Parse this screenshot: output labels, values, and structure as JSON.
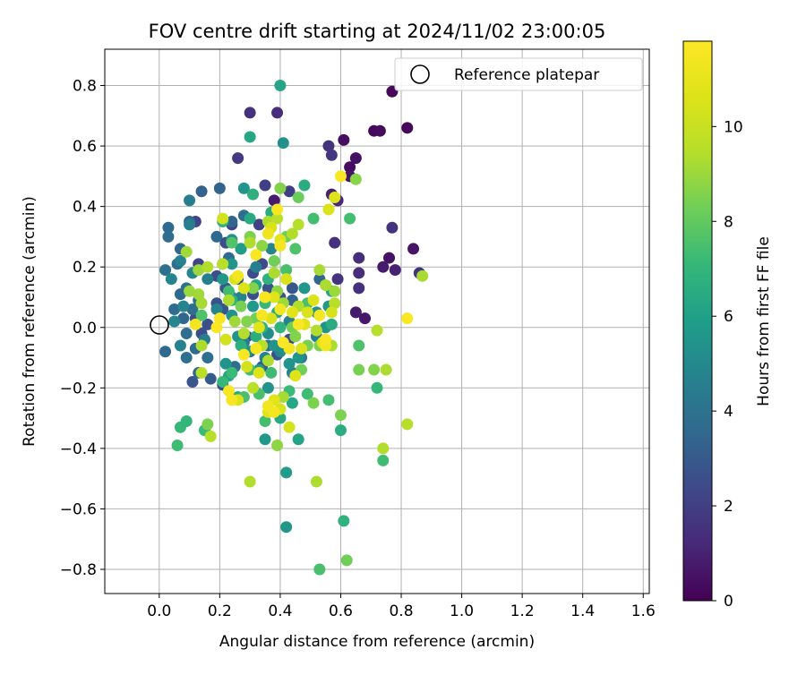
{
  "chart_data": {
    "type": "scatter",
    "title": "FOV centre drift starting at 2024/11/02 23:00:05",
    "xlabel": "Angular distance from reference (arcmin)",
    "ylabel": "Rotation from reference (arcmin)",
    "xlim": [
      -0.18,
      1.62
    ],
    "ylim": [
      -0.88,
      0.92
    ],
    "xticks": [
      0.0,
      0.2,
      0.4,
      0.6,
      0.8,
      1.0,
      1.2,
      1.4,
      1.6
    ],
    "xtick_labels": [
      "0.0",
      "0.2",
      "0.4",
      "0.6",
      "0.8",
      "1.0",
      "1.2",
      "1.4",
      "1.6"
    ],
    "yticks": [
      0.8,
      0.6,
      0.4,
      0.2,
      0.0,
      -0.2,
      -0.4,
      -0.6,
      -0.8
    ],
    "ytick_labels": [
      "0.8",
      "0.6",
      "0.4",
      "0.2",
      "0.0",
      "−0.2",
      "−0.4",
      "−0.6",
      "−0.8"
    ],
    "grid": true,
    "legend": {
      "placement": "top-right",
      "entries": [
        "Reference platepar"
      ]
    },
    "reference_point": {
      "x": 0.0,
      "y": 0.0,
      "label": "Reference platepar"
    },
    "colorbar": {
      "label": "Hours from first FF file",
      "colormap": "viridis",
      "range": [
        0,
        11.8
      ],
      "ticks": [
        0,
        2,
        4,
        6,
        8,
        10
      ],
      "tick_labels": [
        "0",
        "2",
        "4",
        "6",
        "8",
        "10"
      ]
    },
    "points": [
      [
        0.77,
        0.78,
        0.2
      ],
      [
        0.82,
        0.66,
        0.2
      ],
      [
        0.71,
        0.65,
        0.2
      ],
      [
        0.73,
        0.65,
        0.3
      ],
      [
        0.61,
        0.62,
        0.4
      ],
      [
        0.63,
        0.53,
        0.4
      ],
      [
        0.65,
        0.56,
        0.5
      ],
      [
        0.63,
        0.5,
        0.6
      ],
      [
        0.84,
        0.26,
        0.6
      ],
      [
        0.76,
        0.23,
        0.5
      ],
      [
        0.74,
        0.2,
        0.8
      ],
      [
        0.78,
        0.19,
        1.0
      ],
      [
        0.68,
        0.03,
        0.7
      ],
      [
        0.65,
        0.05,
        0.8
      ],
      [
        0.38,
        0.42,
        0.8
      ],
      [
        0.57,
        0.44,
        1.0
      ],
      [
        0.59,
        0.42,
        1.2
      ],
      [
        0.39,
        0.71,
        1.4
      ],
      [
        0.3,
        0.71,
        1.5
      ],
      [
        0.56,
        0.6,
        1.6
      ],
      [
        0.57,
        0.57,
        1.7
      ],
      [
        0.26,
        0.56,
        1.8
      ],
      [
        0.77,
        0.33,
        1.6
      ],
      [
        0.58,
        0.28,
        1.5
      ],
      [
        0.66,
        0.23,
        1.4
      ],
      [
        0.66,
        0.18,
        1.4
      ],
      [
        0.86,
        0.18,
        1.6
      ],
      [
        0.66,
        0.13,
        1.5
      ],
      [
        0.59,
        0.16,
        1.6
      ],
      [
        0.35,
        0.47,
        2.0
      ],
      [
        0.43,
        0.45,
        2.0
      ],
      [
        0.33,
        0.34,
        2.1
      ],
      [
        0.12,
        0.35,
        2.2
      ],
      [
        0.24,
        0.34,
        2.3
      ],
      [
        0.27,
        0.26,
        2.3
      ],
      [
        0.22,
        0.28,
        2.5
      ],
      [
        0.34,
        0.21,
        2.4
      ],
      [
        0.13,
        0.21,
        2.2
      ],
      [
        0.21,
        0.21,
        2.6
      ],
      [
        0.31,
        0.18,
        2.5
      ],
      [
        0.19,
        0.17,
        2.6
      ],
      [
        0.26,
        0.16,
        2.8
      ],
      [
        0.22,
        0.13,
        2.9
      ],
      [
        0.36,
        0.13,
        2.7
      ],
      [
        0.44,
        0.13,
        2.9
      ],
      [
        0.31,
        0.11,
        2.6
      ],
      [
        0.4,
        0.1,
        2.8
      ],
      [
        0.19,
        0.08,
        2.7
      ],
      [
        0.21,
        0.06,
        2.8
      ],
      [
        0.12,
        0.03,
        2.5
      ],
      [
        0.16,
        0.01,
        2.6
      ],
      [
        0.14,
        -0.02,
        2.5
      ],
      [
        0.29,
        -0.03,
        2.6
      ],
      [
        0.43,
        -0.04,
        2.4
      ],
      [
        0.39,
        -0.09,
        2.7
      ],
      [
        0.34,
        -0.13,
        2.9
      ],
      [
        0.21,
        -0.19,
        2.5
      ],
      [
        0.11,
        -0.18,
        2.8
      ],
      [
        0.17,
        -0.17,
        3.0
      ],
      [
        0.14,
        0.45,
        3.3
      ],
      [
        0.2,
        0.46,
        3.4
      ],
      [
        0.1,
        0.35,
        3.5
      ],
      [
        0.03,
        0.33,
        3.6
      ],
      [
        0.03,
        0.3,
        3.7
      ],
      [
        0.07,
        0.26,
        3.5
      ],
      [
        0.06,
        0.21,
        3.8
      ],
      [
        0.02,
        0.19,
        3.9
      ],
      [
        0.09,
        0.13,
        3.8
      ],
      [
        0.07,
        0.11,
        3.6
      ],
      [
        0.13,
        0.09,
        3.9
      ],
      [
        0.05,
        0.06,
        3.7
      ],
      [
        0.11,
        0.06,
        3.8
      ],
      [
        0.08,
        0.03,
        3.5
      ],
      [
        0.09,
        -0.02,
        3.8
      ],
      [
        0.02,
        -0.08,
        3.6
      ],
      [
        0.12,
        -0.07,
        3.7
      ],
      [
        0.09,
        -0.1,
        3.9
      ],
      [
        0.16,
        -0.1,
        3.9
      ],
      [
        0.13,
        -0.15,
        3.5
      ],
      [
        0.25,
        -0.13,
        3.8
      ],
      [
        0.3,
        -0.08,
        3.9
      ],
      [
        0.36,
        -0.06,
        3.7
      ],
      [
        0.44,
        0.09,
        3.4
      ],
      [
        0.53,
        0.16,
        3.6
      ],
      [
        0.19,
        0.3,
        3.6
      ],
      [
        0.24,
        0.35,
        3.5
      ],
      [
        0.28,
        0.37,
        3.8
      ],
      [
        0.23,
        0.23,
        3.7
      ],
      [
        0.1,
        0.42,
        4.5
      ],
      [
        0.1,
        0.34,
        4.6
      ],
      [
        0.07,
        0.22,
        4.7
      ],
      [
        0.11,
        0.18,
        4.9
      ],
      [
        0.04,
        0.16,
        4.8
      ],
      [
        0.16,
        0.16,
        4.6
      ],
      [
        0.08,
        0.07,
        4.8
      ],
      [
        0.05,
        0.02,
        4.9
      ],
      [
        0.07,
        -0.06,
        4.7
      ],
      [
        0.15,
        -0.04,
        4.5
      ],
      [
        0.19,
        0.06,
        4.8
      ],
      [
        0.24,
        0.1,
        4.9
      ],
      [
        0.27,
        0.1,
        4.7
      ],
      [
        0.32,
        0.2,
        4.6
      ],
      [
        0.37,
        0.26,
        4.8
      ],
      [
        0.28,
        -0.05,
        4.6
      ],
      [
        0.35,
        -0.1,
        4.7
      ],
      [
        0.4,
        -0.08,
        4.9
      ],
      [
        0.44,
        -0.15,
        4.8
      ],
      [
        0.47,
        -0.1,
        4.5
      ],
      [
        0.52,
        -0.03,
        4.6
      ],
      [
        0.43,
        0.02,
        4.7
      ],
      [
        0.41,
        0.61,
        5.3
      ],
      [
        0.24,
        0.29,
        5.3
      ],
      [
        0.21,
        0.16,
        5.6
      ],
      [
        0.24,
        0.21,
        5.5
      ],
      [
        0.24,
        0.04,
        5.4
      ],
      [
        0.22,
        -0.12,
        5.5
      ],
      [
        0.26,
        -0.03,
        5.4
      ],
      [
        0.29,
        -0.08,
        5.6
      ],
      [
        0.36,
        -0.02,
        5.2
      ],
      [
        0.38,
        -0.06,
        5.4
      ],
      [
        0.27,
        0.26,
        5.8
      ],
      [
        0.28,
        0.46,
        5.5
      ],
      [
        0.31,
        0.07,
        5.7
      ],
      [
        0.33,
        -0.14,
        5.6
      ],
      [
        0.36,
        -0.2,
        5.4
      ],
      [
        0.41,
        -0.07,
        5.3
      ],
      [
        0.43,
        -0.12,
        5.5
      ],
      [
        0.46,
        -0.1,
        5.5
      ],
      [
        0.52,
        0.05,
        5.3
      ],
      [
        0.55,
        0.0,
        5.4
      ],
      [
        0.48,
        0.13,
        5.6
      ],
      [
        0.56,
        0.07,
        5.7
      ],
      [
        0.35,
        -0.37,
        5.7
      ],
      [
        0.42,
        -0.66,
        5.6
      ],
      [
        0.42,
        -0.48,
        5.8
      ],
      [
        0.4,
        0.8,
        6.3
      ],
      [
        0.3,
        0.63,
        6.3
      ],
      [
        0.3,
        0.36,
        6.4
      ],
      [
        0.37,
        0.38,
        6.5
      ],
      [
        0.48,
        0.47,
        6.5
      ],
      [
        0.57,
        0.12,
        6.2
      ],
      [
        0.57,
        0.01,
        6.5
      ],
      [
        0.44,
        -0.25,
        6.3
      ],
      [
        0.46,
        -0.37,
        6.2
      ],
      [
        0.4,
        -0.3,
        6.4
      ],
      [
        0.23,
        -0.16,
        6.3
      ],
      [
        0.26,
        -0.23,
        6.5
      ],
      [
        0.32,
        0.14,
        6.3
      ],
      [
        0.39,
        0.05,
        6.4
      ],
      [
        0.35,
        0.1,
        6.4
      ],
      [
        0.27,
        -0.06,
        6.7
      ],
      [
        0.34,
        0.0,
        6.8
      ],
      [
        0.24,
        0.09,
        6.8
      ],
      [
        0.6,
        -0.34,
        6.6
      ],
      [
        0.61,
        -0.64,
        6.8
      ],
      [
        0.31,
        0.44,
        6.7
      ],
      [
        0.21,
        0.35,
        6.8
      ],
      [
        0.4,
        0.0,
        6.9
      ],
      [
        0.32,
        -0.03,
        6.6
      ],
      [
        0.36,
        0.16,
        6.8
      ],
      [
        0.07,
        -0.33,
        7.1
      ],
      [
        0.09,
        -0.31,
        7.0
      ],
      [
        0.06,
        -0.39,
        7.3
      ],
      [
        0.15,
        -0.34,
        7.2
      ],
      [
        0.21,
        -0.18,
        7.1
      ],
      [
        0.24,
        -0.15,
        7.2
      ],
      [
        0.3,
        -0.14,
        7.4
      ],
      [
        0.37,
        -0.15,
        7.3
      ],
      [
        0.33,
        -0.22,
        7.5
      ],
      [
        0.43,
        -0.21,
        7.2
      ],
      [
        0.49,
        -0.22,
        7.3
      ],
      [
        0.56,
        -0.24,
        7.4
      ],
      [
        0.72,
        -0.2,
        7.1
      ],
      [
        0.66,
        -0.06,
        7.6
      ],
      [
        0.28,
        -0.23,
        7.5
      ],
      [
        0.35,
        -0.31,
        7.4
      ],
      [
        0.49,
        0.08,
        7.5
      ],
      [
        0.45,
        0.26,
        7.6
      ],
      [
        0.51,
        0.36,
        7.4
      ],
      [
        0.24,
        0.28,
        7.7
      ],
      [
        0.14,
        0.04,
        7.6
      ],
      [
        0.23,
        0.12,
        7.3
      ],
      [
        0.35,
        0.08,
        7.1
      ],
      [
        0.42,
        0.19,
        7.5
      ],
      [
        0.74,
        -0.44,
        7.3
      ],
      [
        0.63,
        0.36,
        7.4
      ],
      [
        0.53,
        -0.8,
        7.5
      ],
      [
        0.42,
        0.3,
        8.2
      ],
      [
        0.46,
        0.43,
        8.2
      ],
      [
        0.38,
        0.22,
        8.3
      ],
      [
        0.44,
        0.0,
        8.3
      ],
      [
        0.49,
        -0.06,
        8.4
      ],
      [
        0.51,
        -0.25,
        8.5
      ],
      [
        0.47,
        -0.14,
        8.3
      ],
      [
        0.6,
        -0.29,
        8.5
      ],
      [
        0.66,
        -0.14,
        8.4
      ],
      [
        0.71,
        -0.14,
        8.6
      ],
      [
        0.32,
        0.03,
        8.3
      ],
      [
        0.31,
        0.13,
        8.6
      ],
      [
        0.27,
        0.07,
        8.4
      ],
      [
        0.29,
        0.02,
        8.6
      ],
      [
        0.39,
        0.12,
        8.8
      ],
      [
        0.62,
        -0.77,
        8.3
      ],
      [
        0.45,
        -0.03,
        8.6
      ],
      [
        0.53,
        -0.06,
        8.5
      ],
      [
        0.34,
        0.27,
        8.8
      ],
      [
        0.3,
        0.3,
        8.5
      ],
      [
        0.4,
        0.46,
        8.6
      ],
      [
        0.65,
        0.49,
        8.7
      ],
      [
        0.16,
        -0.32,
        8.5
      ],
      [
        0.39,
        -0.39,
        8.8
      ],
      [
        0.13,
        0.11,
        9.1
      ],
      [
        0.14,
        0.08,
        9.2
      ],
      [
        0.1,
        0.12,
        9.0
      ],
      [
        0.23,
        0.09,
        9.3
      ],
      [
        0.25,
        0.02,
        9.1
      ],
      [
        0.28,
        -0.02,
        9.4
      ],
      [
        0.36,
        -0.11,
        9.3
      ],
      [
        0.41,
        -0.23,
        9.2
      ],
      [
        0.52,
        -0.01,
        9.4
      ],
      [
        0.55,
        0.14,
        9.3
      ],
      [
        0.53,
        0.19,
        9.2
      ],
      [
        0.46,
        0.07,
        9.4
      ],
      [
        0.41,
        0.08,
        9.1
      ],
      [
        0.58,
        0.12,
        9.0
      ],
      [
        0.58,
        0.08,
        9.5
      ],
      [
        0.57,
        -0.06,
        9.3
      ],
      [
        0.44,
        0.31,
        9.4
      ],
      [
        0.46,
        0.34,
        9.5
      ],
      [
        0.36,
        0.35,
        9.3
      ],
      [
        0.39,
        0.36,
        9.6
      ],
      [
        0.38,
        0.18,
        9.3
      ],
      [
        0.3,
        0.28,
        9.4
      ],
      [
        0.34,
        -0.06,
        9.5
      ],
      [
        0.52,
        -0.51,
        9.3
      ],
      [
        0.3,
        -0.51,
        9.4
      ],
      [
        0.17,
        -0.36,
        9.5
      ],
      [
        0.31,
        -0.2,
        9.6
      ],
      [
        0.14,
        -0.15,
        9.6
      ],
      [
        0.75,
        -0.14,
        9.3
      ],
      [
        0.74,
        -0.4,
        9.4
      ],
      [
        0.82,
        -0.32,
        9.5
      ],
      [
        0.87,
        0.17,
        9.2
      ],
      [
        0.72,
        -0.01,
        9.5
      ],
      [
        0.13,
        0.19,
        9.0
      ],
      [
        0.09,
        0.25,
        9.1
      ],
      [
        0.16,
        0.2,
        9.4
      ],
      [
        0.21,
        0.21,
        9.6
      ],
      [
        0.14,
        -0.06,
        9.3
      ],
      [
        0.22,
        -0.04,
        10.3
      ],
      [
        0.26,
        -0.24,
        10.5
      ],
      [
        0.29,
        -0.13,
        10.3
      ],
      [
        0.33,
        -0.15,
        10.6
      ],
      [
        0.36,
        -0.28,
        10.8
      ],
      [
        0.38,
        -0.24,
        10.8
      ],
      [
        0.4,
        -0.27,
        10.5
      ],
      [
        0.43,
        -0.33,
        10.4
      ],
      [
        0.45,
        -0.16,
        10.7
      ],
      [
        0.47,
        -0.07,
        10.5
      ],
      [
        0.49,
        0.05,
        10.5
      ],
      [
        0.54,
        -0.05,
        10.7
      ],
      [
        0.51,
        0.09,
        10.6
      ],
      [
        0.57,
        0.05,
        10.4
      ],
      [
        0.56,
        0.39,
        10.6
      ],
      [
        0.58,
        0.43,
        10.6
      ],
      [
        0.48,
        0.01,
        10.8
      ],
      [
        0.44,
        0.05,
        10.8
      ],
      [
        0.42,
        0.16,
        10.5
      ],
      [
        0.38,
        0.1,
        10.7
      ],
      [
        0.37,
        0.03,
        10.5
      ],
      [
        0.33,
        0.0,
        10.8
      ],
      [
        0.25,
        0.16,
        10.4
      ],
      [
        0.28,
        0.13,
        10.6
      ],
      [
        0.21,
        0.36,
        10.3
      ],
      [
        0.37,
        0.33,
        10.5
      ],
      [
        0.4,
        0.29,
        10.7
      ],
      [
        0.6,
        0.5,
        11.7
      ],
      [
        0.82,
        0.03,
        11.7
      ],
      [
        0.2,
        0.03,
        11.6
      ],
      [
        0.12,
        0.01,
        11.4
      ],
      [
        0.19,
        0.0,
        11.7
      ],
      [
        0.34,
        0.04,
        11.5
      ],
      [
        0.4,
        0.06,
        11.4
      ],
      [
        0.46,
        0.01,
        11.7
      ],
      [
        0.55,
        -0.06,
        11.4
      ],
      [
        0.55,
        -0.04,
        11.6
      ],
      [
        0.43,
        -0.07,
        11.4
      ],
      [
        0.41,
        -0.05,
        11.7
      ],
      [
        0.32,
        -0.07,
        11.5
      ],
      [
        0.28,
        -0.09,
        11.7
      ],
      [
        0.38,
        -0.28,
        11.5
      ],
      [
        0.36,
        -0.26,
        11.4
      ],
      [
        0.24,
        -0.24,
        11.6
      ],
      [
        0.23,
        -0.21,
        11.7
      ],
      [
        0.39,
        0.39,
        11.6
      ],
      [
        0.4,
        0.27,
        11.5
      ],
      [
        0.26,
        0.17,
        11.4
      ],
      [
        0.32,
        0.24,
        11.7
      ],
      [
        0.35,
        0.1,
        11.6
      ],
      [
        0.53,
        0.04,
        11.5
      ],
      [
        0.36,
        0.31,
        11.3
      ]
    ]
  }
}
